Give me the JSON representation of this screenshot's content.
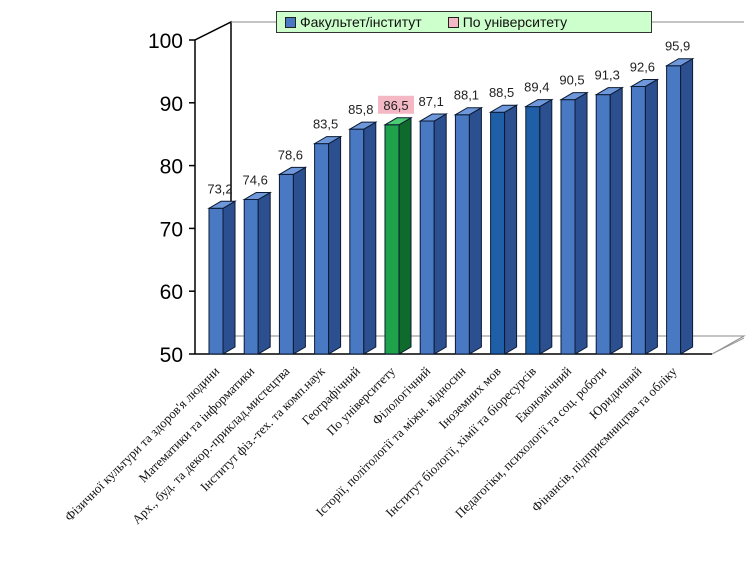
{
  "chart_data": {
    "type": "bar",
    "categories": [
      "Фізичної культури та здоров'я людини",
      "Математики та інформатики",
      "Арх., буд. та декор.-приклад.мистецтва",
      "Інститут фіз.-тех. та комп.наук",
      "Географічний",
      "По університету",
      "Філологічний",
      "Історії, політології та міжн. відносин",
      "Іноземних мов",
      "Інститут біології, хімії та біоресурсів",
      "Економічний",
      "Педагогіки, психології та соц. роботи",
      "Юридичний",
      "Фінансів, підприємництва та обліку"
    ],
    "values": [
      73.2,
      74.6,
      78.6,
      83.5,
      85.8,
      86.5,
      87.1,
      88.1,
      88.5,
      89.4,
      90.5,
      91.3,
      92.6,
      95.9
    ],
    "value_labels": [
      "73,2",
      "74,6",
      "78,6",
      "83,5",
      "85,8",
      "86,5",
      "87,1",
      "88,1",
      "88,5",
      "89,4",
      "90,5",
      "91,3",
      "92,6",
      "95,9"
    ],
    "highlight_index": 5,
    "ylim": [
      50,
      100
    ],
    "yticks": [
      "50",
      "60",
      "70",
      "80",
      "90",
      "100"
    ],
    "grid": false,
    "legend_position": "top",
    "legend": [
      "Факультет/інститут",
      "По університету"
    ],
    "colors": {
      "bar": "#4a79c4",
      "bar_side": "#2b4f8f",
      "bar_top": "#6f98da",
      "bar_dark": "#1f5fa8",
      "highlight": "#1fa34a",
      "highlight_side": "#0f6b2c",
      "highlight_top": "#4ccc72",
      "highlight_label_bg": "#f4b8c4",
      "legend_bg": "#ccffcc"
    }
  }
}
